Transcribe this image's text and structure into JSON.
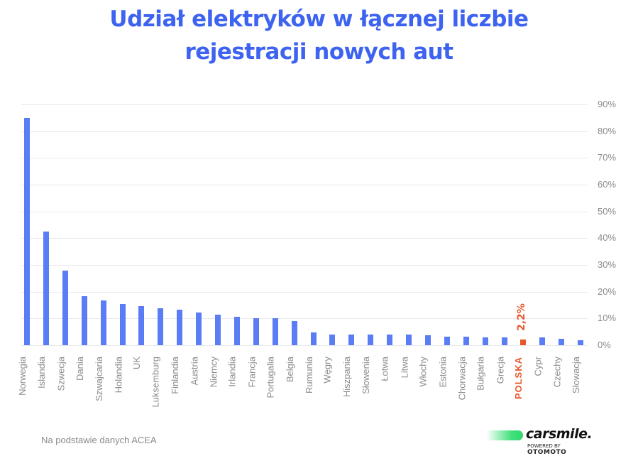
{
  "title_line1": "Udział elektryków w łącznej liczbie",
  "title_line2": "rejestracji nowych aut",
  "footer": {
    "source": "Na podstawie danych ACEA"
  },
  "logo": {
    "brand": "carsmile.",
    "powered_by": "POWERED BY",
    "partner": "OTOMOTO"
  },
  "colors": {
    "bar": "#5a7cf4",
    "highlight": "#e8572b",
    "title": "#3d63f0",
    "grid": "#e9e9ec",
    "axis_text": "#8c8c8c"
  },
  "chart_data": {
    "type": "bar",
    "title": "Udział elektryków w łącznej liczbie rejestracji nowych aut",
    "xlabel": "",
    "ylabel": "",
    "y_axis_position": "right",
    "ylim": [
      0,
      90
    ],
    "yticks": [
      "0%",
      "10%",
      "20%",
      "30%",
      "40%",
      "50%",
      "60%",
      "70%",
      "80%",
      "90%"
    ],
    "grid": true,
    "legend": null,
    "categories": [
      "Norwegia",
      "Islandia",
      "Szwecja",
      "Dania",
      "Szwajcaria",
      "Holandia",
      "UK",
      "Luksemburg",
      "Finlandia",
      "Austria",
      "Niemcy",
      "Irlandia",
      "Francja",
      "Portugalia",
      "Belgia",
      "Rumunia",
      "Węgry",
      "Hiszpania",
      "Słowenia",
      "Łotwa",
      "Litwa",
      "Włochy",
      "Estonia",
      "Chorwacja",
      "Bułgaria",
      "Grecja",
      "POLSKA",
      "Cypr",
      "Czechy",
      "Słowacja"
    ],
    "values": [
      85,
      42.5,
      28,
      18.2,
      16.8,
      15.3,
      14.6,
      13.9,
      13.3,
      12.2,
      11.4,
      10.6,
      10.1,
      10.1,
      9.0,
      4.8,
      4.0,
      3.9,
      3.9,
      3.9,
      4.1,
      3.6,
      3.3,
      3.3,
      3.0,
      3.0,
      2.2,
      3.0,
      2.5,
      1.8
    ],
    "highlight": {
      "category": "POLSKA",
      "label": "2,2%"
    },
    "source": "Na podstawie danych ACEA"
  }
}
